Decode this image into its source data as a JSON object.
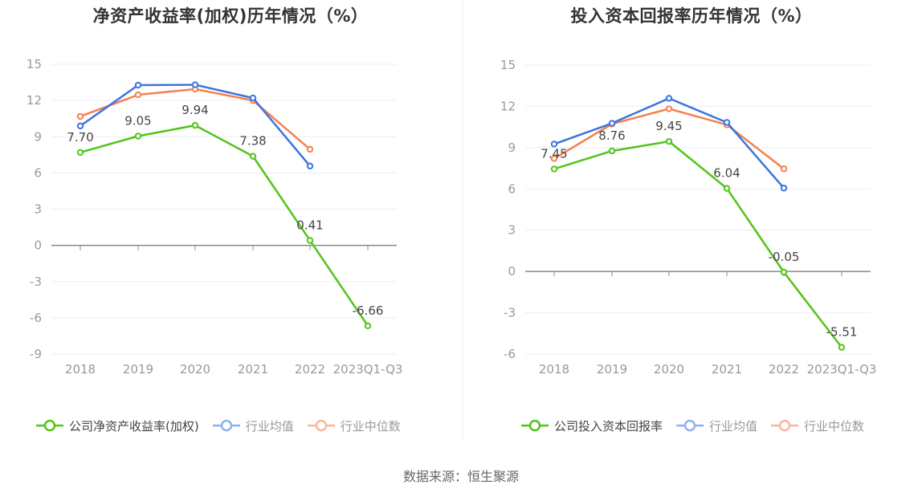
{
  "colors": {
    "company": "#52c41a",
    "mean": "#3b74e0",
    "median": "#f5804f",
    "mean_legend": "#8fb0ef",
    "median_legend": "#f9b69c",
    "grid": "#e9edf5",
    "axis": "#888888"
  },
  "chart_data": [
    {
      "type": "line",
      "title": "净资产收益率(加权)历年情况（%）",
      "categories": [
        "2018",
        "2019",
        "2020",
        "2021",
        "2022",
        "2023Q1-Q3"
      ],
      "ylim": [
        -9,
        15
      ],
      "yticks": [
        "15",
        "12",
        "9",
        "6",
        "3",
        "0",
        "-3",
        "-6",
        "-9"
      ],
      "ytick_values": [
        15,
        12,
        9,
        6,
        3,
        0,
        -3,
        -6,
        -9
      ],
      "grid": true,
      "legend_position": "bottom",
      "series": [
        {
          "name": "公司净资产收益率(加权)",
          "key": "company",
          "values": [
            7.7,
            9.05,
            9.94,
            7.38,
            0.41,
            -6.66
          ],
          "labels": [
            "7.70",
            "9.05",
            "9.94",
            "7.38",
            "0.41",
            "-6.66"
          ]
        },
        {
          "name": "行业均值",
          "key": "mean",
          "values": [
            9.89,
            13.27,
            13.3,
            12.2,
            6.57,
            null
          ]
        },
        {
          "name": "行业中位数",
          "key": "median",
          "values": [
            10.68,
            12.47,
            12.94,
            12.0,
            7.96,
            null
          ]
        }
      ]
    },
    {
      "type": "line",
      "title": "投入资本回报率历年情况（%）",
      "categories": [
        "2018",
        "2019",
        "2020",
        "2021",
        "2022",
        "2023Q1-Q3"
      ],
      "ylim": [
        -6,
        15
      ],
      "yticks": [
        "15",
        "12",
        "9",
        "6",
        "3",
        "0",
        "-3",
        "-6"
      ],
      "ytick_values": [
        15,
        12,
        9,
        6,
        3,
        0,
        -3,
        -6
      ],
      "grid": true,
      "legend_position": "bottom",
      "series": [
        {
          "name": "公司投入资本回报率",
          "key": "company",
          "values": [
            7.45,
            8.76,
            9.45,
            6.04,
            -0.05,
            -5.51
          ],
          "labels": [
            "7.45",
            "8.76",
            "9.45",
            "6.04",
            "-0.05",
            "-5.51"
          ]
        },
        {
          "name": "行业均值",
          "key": "mean",
          "values": [
            9.26,
            10.77,
            12.58,
            10.83,
            6.06,
            null
          ]
        },
        {
          "name": "行业中位数",
          "key": "median",
          "values": [
            8.21,
            10.72,
            11.82,
            10.66,
            7.46,
            null
          ]
        }
      ]
    }
  ],
  "footer": {
    "source": "数据来源：恒生聚源"
  }
}
